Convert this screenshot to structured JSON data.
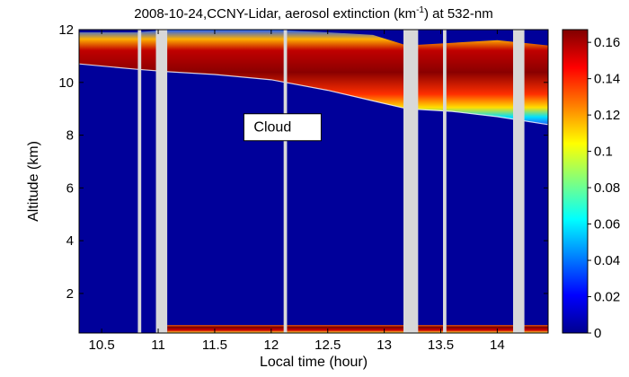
{
  "chart_data": {
    "type": "heatmap",
    "title": {
      "prefix": "2008-10-24,CCNY-Lidar, aerosol extinction (km",
      "superscript": "-1",
      "suffix": ") at 532-nm"
    },
    "xlabel": "Local time (hour)",
    "ylabel": "Altitude (km)",
    "xlim": [
      10.3,
      14.45
    ],
    "ylim": [
      0.5,
      12
    ],
    "xticks": [
      "10.5",
      "11",
      "11.5",
      "12",
      "12.5",
      "13",
      "13.5",
      "14"
    ],
    "yticks": [
      "2",
      "4",
      "6",
      "8",
      "10",
      "12"
    ],
    "colorbar": {
      "colormap": "jet",
      "range": [
        0,
        0.167
      ],
      "ticks": [
        "0",
        "0.02",
        "0.04",
        "0.06",
        "0.08",
        "0.1",
        "0.12",
        "0.14",
        "0.16"
      ]
    },
    "background_color": "#00009a",
    "data_gaps_hours": [
      [
        10.82,
        10.85
      ],
      [
        10.98,
        11.08
      ],
      [
        12.11,
        12.14
      ],
      [
        13.17,
        13.3
      ],
      [
        13.52,
        13.55
      ],
      [
        14.14,
        14.24
      ]
    ],
    "boundary_layer": {
      "top_km": 0.8,
      "start_hour": 11.08
    },
    "cirrus_layer": {
      "x": [
        10.3,
        10.8,
        11.1,
        11.5,
        12.0,
        12.5,
        12.9,
        13.2,
        13.6,
        14.0,
        14.45
      ],
      "base_km": [
        10.7,
        10.5,
        10.4,
        10.3,
        10.1,
        9.7,
        9.3,
        9.0,
        8.9,
        8.7,
        8.4
      ],
      "top_km": [
        11.9,
        11.9,
        12.0,
        12.0,
        12.0,
        11.9,
        11.8,
        11.4,
        11.5,
        11.6,
        11.4
      ]
    },
    "annotations": [
      {
        "text": "Cloud",
        "x": 12.1,
        "y": 8.3
      }
    ]
  }
}
